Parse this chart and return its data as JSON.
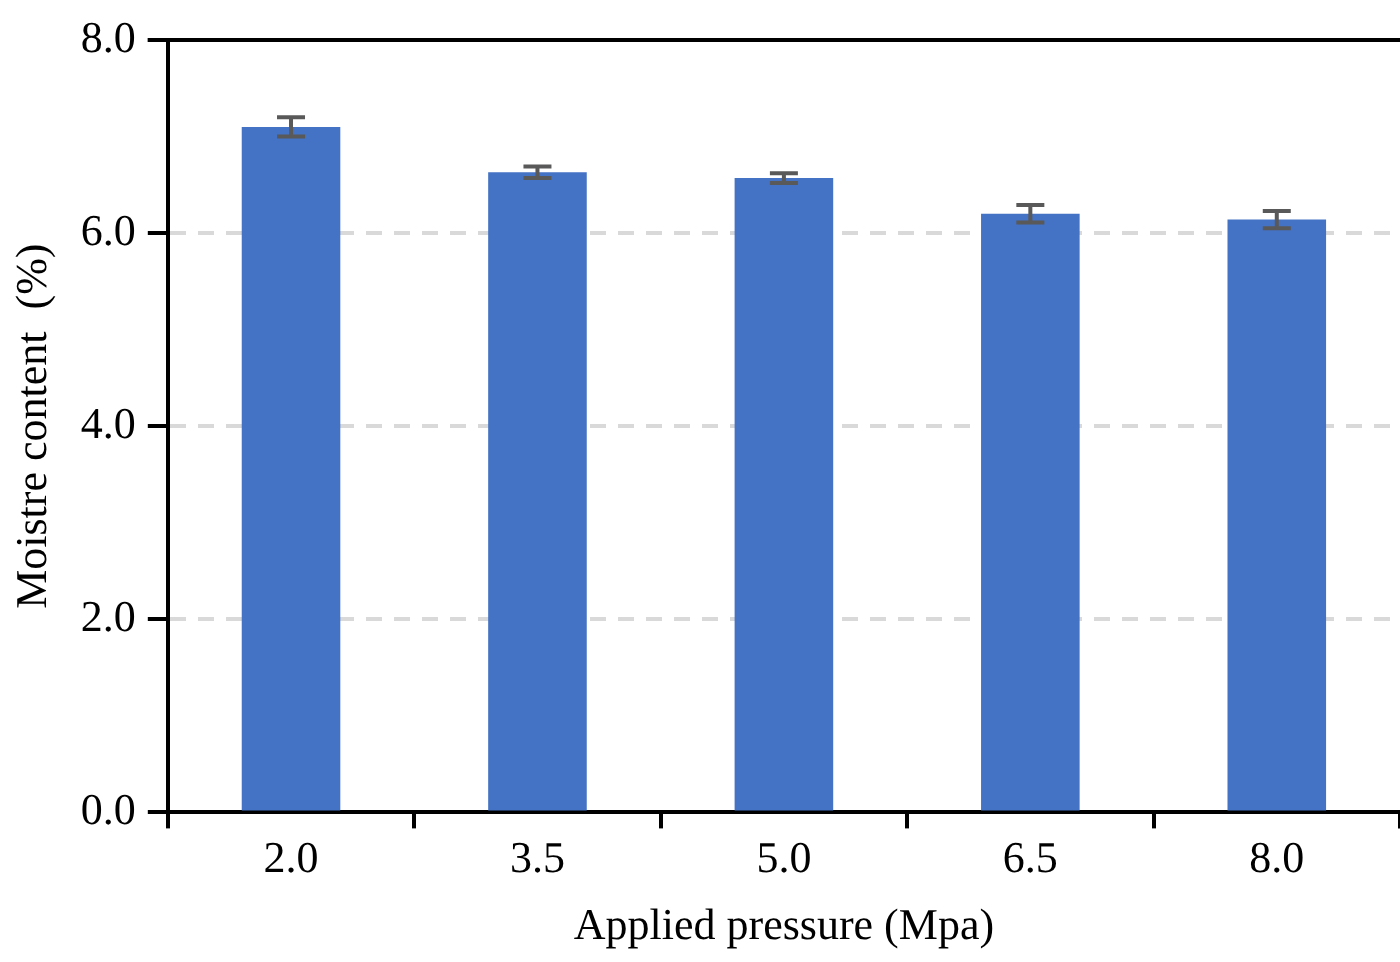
{
  "chart_data": {
    "type": "bar",
    "xlabel": "Applied pressure (Mpa)",
    "ylabel": "Moistre content  (%)",
    "categories": [
      "2.0",
      "3.5",
      "5.0",
      "6.5",
      "8.0"
    ],
    "values": [
      7.1,
      6.63,
      6.57,
      6.2,
      6.14
    ],
    "errors": [
      0.1,
      0.06,
      0.05,
      0.09,
      0.09
    ],
    "color": "#4472c4",
    "ylim": [
      0,
      8
    ],
    "yticks": [
      {
        "value": 0,
        "label": "0.0"
      },
      {
        "value": 2,
        "label": "2.0"
      },
      {
        "value": 4,
        "label": "4.0"
      },
      {
        "value": 6,
        "label": "6.0"
      },
      {
        "value": 8,
        "label": "8.0"
      }
    ],
    "grid": "y"
  }
}
